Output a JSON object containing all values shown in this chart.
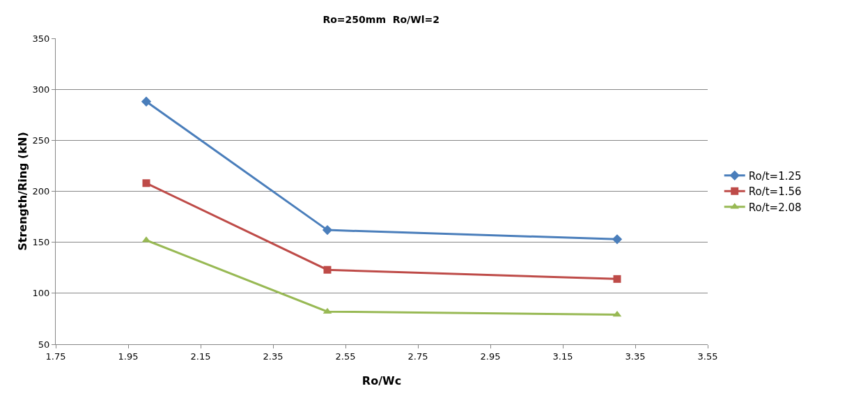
{
  "chart_data": {
    "type": "line",
    "title": "Ro=250mm  Ro/Wl=2",
    "xlabel": "Ro/Wc",
    "ylabel": "Strength/Ring (kN)",
    "x": [
      2.0,
      2.5,
      3.3
    ],
    "series": [
      {
        "name": "Ro/t=1.25",
        "color": "#4a7ebb",
        "marker": "diamond",
        "values": [
          288,
          162,
          153
        ]
      },
      {
        "name": "Ro/t=1.56",
        "color": "#be4b48",
        "marker": "square",
        "values": [
          208,
          123,
          114
        ]
      },
      {
        "name": "Ro/t=2.08",
        "color": "#98b954",
        "marker": "triangle",
        "values": [
          152,
          82,
          79
        ]
      }
    ],
    "xlim": [
      1.75,
      3.55
    ],
    "xticks": [
      1.75,
      1.95,
      2.15,
      2.35,
      2.55,
      2.75,
      2.95,
      3.15,
      3.35,
      3.55
    ],
    "ylim": [
      50,
      350
    ],
    "yticks": [
      50,
      100,
      150,
      200,
      250,
      300,
      350
    ],
    "grid": "y",
    "legend": "right",
    "line_style": "solid"
  }
}
